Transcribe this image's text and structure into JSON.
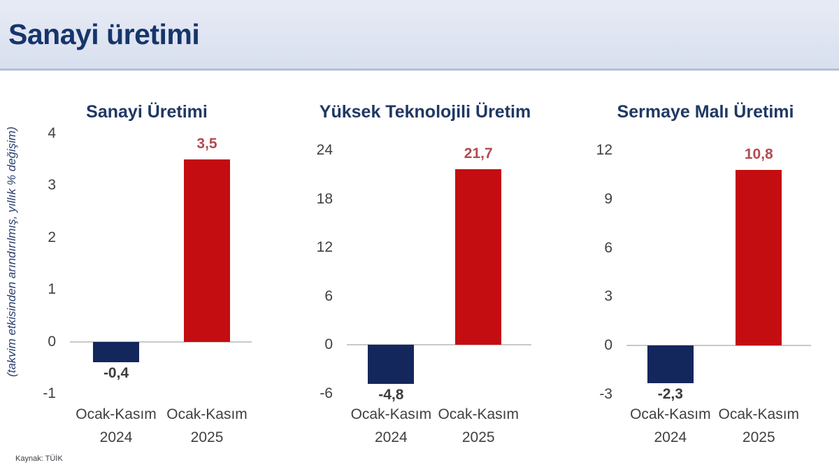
{
  "page": {
    "title": "Sanayi üretimi",
    "y_axis_note": "(takvim etkisinden arındırılmış, yıllık % değişim)",
    "source": "Kaynak: TÜİK"
  },
  "colors": {
    "header_bg": "#dce3f0",
    "header_border": "#b4bfd8",
    "main_title": "#17356b",
    "chart_title": "#1f3864",
    "bar_negative": "#14275c",
    "bar_positive": "#c40d10",
    "value_label_positive": "#b34b50",
    "value_label_negative": "#3d3d3d",
    "tick_label": "#404040",
    "axis_line": "#c9c9c9"
  },
  "chart_data": [
    {
      "type": "bar",
      "title": "Sanayi Üretimi",
      "categories": [
        [
          "Ocak-Kasım",
          "2024"
        ],
        [
          "Ocak-Kasım",
          "2025"
        ]
      ],
      "values": [
        -0.4,
        3.5
      ],
      "value_labels": [
        "-0,4",
        "3,5"
      ],
      "series_colors": [
        "#14275c",
        "#c40d10"
      ],
      "ylim": [
        -1,
        4
      ],
      "yticks": [
        4,
        3,
        2,
        1,
        0,
        -1
      ],
      "ytick_labels": [
        "4",
        "3",
        "2",
        "1",
        "0",
        "-1"
      ],
      "grid": false,
      "legend": "none"
    },
    {
      "type": "bar",
      "title": "Yüksek Teknolojili Üretim",
      "categories": [
        [
          "Ocak-Kasım",
          "2024"
        ],
        [
          "Ocak-Kasım",
          "2025"
        ]
      ],
      "values": [
        -4.8,
        21.7
      ],
      "value_labels": [
        "-4,8",
        "21,7"
      ],
      "series_colors": [
        "#14275c",
        "#c40d10"
      ],
      "ylim": [
        -6,
        24
      ],
      "yticks": [
        24,
        18,
        12,
        6,
        0,
        -6
      ],
      "ytick_labels": [
        "24",
        "18",
        "12",
        "6",
        "0",
        "-6"
      ],
      "grid": false,
      "legend": "none"
    },
    {
      "type": "bar",
      "title": "Sermaye Malı Üretimi",
      "categories": [
        [
          "Ocak-Kasım",
          "2024"
        ],
        [
          "Ocak-Kasım",
          "2025"
        ]
      ],
      "values": [
        -2.3,
        10.8
      ],
      "value_labels": [
        "-2,3",
        "10,8"
      ],
      "series_colors": [
        "#14275c",
        "#c40d10"
      ],
      "ylim": [
        -3,
        12
      ],
      "yticks": [
        12,
        9,
        6,
        3,
        0,
        -3
      ],
      "ytick_labels": [
        "12",
        "9",
        "6",
        "3",
        "0",
        "-3"
      ],
      "grid": false,
      "legend": "none"
    }
  ]
}
